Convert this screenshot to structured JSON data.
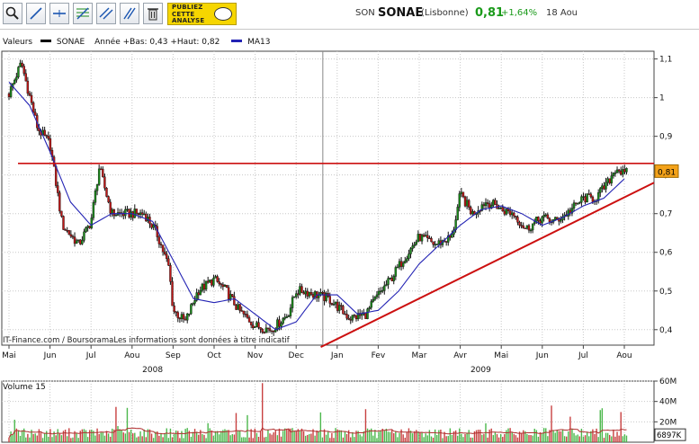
{
  "toolbar": {
    "publicity_text": "PUBLIEZ\nCETTE\nANALYSE",
    "ticker_prefix": "SON",
    "ticker_name": "SONAE",
    "market": "(Lisbonne)",
    "price": "0,81",
    "change": "+1,64%",
    "date": "18 Aou"
  },
  "legend": {
    "label": "Valeurs",
    "series_name": "SONAE",
    "range": "Année +Bas: 0,43 +Haut: 0,82",
    "ma_name": "MA13"
  },
  "credit": "IT-Finance.com / BoursoramaLes informations sont données à titre indicatif",
  "volume_label": "Volume 15",
  "colors": {
    "price": "#000000",
    "up_candle": "#1a8a1a",
    "down_candle": "#c01818",
    "ma13": "#2323b4",
    "trend": "#cc1010",
    "volume_up": "#4cb84c",
    "volume_down": "#c84040",
    "volume_ma": "#b03030",
    "price_tag": "#f3a21a",
    "grid": "#c8c8c8"
  },
  "chart_data": {
    "type": "line",
    "title": "SONAE",
    "y_ticks": [
      "0,4",
      "0,5",
      "0,6",
      "0,7",
      "0,8",
      "0,9",
      "1",
      "1,1"
    ],
    "ylim": [
      0.36,
      1.12
    ],
    "x_ticks": [
      "Mai",
      "Jun",
      "Jul",
      "Aou",
      "Sep",
      "Oct",
      "Nov",
      "Dec",
      "Jan",
      "Fev",
      "Mar",
      "Avr",
      "Mai",
      "Jun",
      "Jul",
      "Aou"
    ],
    "year_labels": [
      "2008",
      "2009"
    ],
    "last_price_label": "0,81",
    "resistance_level": 0.83,
    "series": [
      {
        "name": "SONAE",
        "x": [
          0,
          0.3,
          0.7,
          1.0,
          1.3,
          1.7,
          2.0,
          2.2,
          2.5,
          2.8,
          3.0,
          3.3,
          3.6,
          3.9,
          4.0,
          4.3,
          4.6,
          5.0,
          5.3,
          5.6,
          6.0,
          6.4,
          6.8,
          7.0,
          7.2,
          7.5,
          7.8,
          8.0,
          8.3,
          8.7,
          9.0,
          9.3,
          9.6,
          10.0,
          10.4,
          10.8,
          11.0,
          11.3,
          11.6,
          11.9,
          12.0,
          12.3,
          12.6,
          13.0,
          13.3,
          13.6,
          14.0,
          14.3,
          14.6,
          14.8,
          15.0,
          15.1
        ],
        "values": [
          1.01,
          1.09,
          0.92,
          0.88,
          0.67,
          0.62,
          0.68,
          0.82,
          0.7,
          0.7,
          0.7,
          0.7,
          0.65,
          0.56,
          0.45,
          0.42,
          0.5,
          0.53,
          0.5,
          0.45,
          0.41,
          0.4,
          0.44,
          0.5,
          0.5,
          0.49,
          0.48,
          0.46,
          0.43,
          0.44,
          0.49,
          0.53,
          0.58,
          0.64,
          0.62,
          0.64,
          0.75,
          0.7,
          0.73,
          0.72,
          0.71,
          0.7,
          0.66,
          0.69,
          0.68,
          0.7,
          0.74,
          0.74,
          0.78,
          0.82,
          0.8,
          0.81
        ]
      },
      {
        "name": "MA13",
        "x": [
          0,
          0.5,
          1.0,
          1.5,
          2.0,
          2.5,
          3.0,
          3.5,
          4.0,
          4.5,
          5.0,
          5.5,
          6.0,
          6.5,
          7.0,
          7.5,
          8.0,
          8.5,
          9.0,
          9.5,
          10.0,
          10.5,
          11.0,
          11.5,
          12.0,
          12.5,
          13.0,
          13.5,
          14.0,
          14.5,
          15.0
        ],
        "values": [
          1.04,
          0.98,
          0.86,
          0.73,
          0.67,
          0.7,
          0.7,
          0.68,
          0.58,
          0.48,
          0.47,
          0.48,
          0.44,
          0.4,
          0.42,
          0.49,
          0.49,
          0.44,
          0.45,
          0.5,
          0.57,
          0.62,
          0.67,
          0.71,
          0.72,
          0.7,
          0.67,
          0.69,
          0.72,
          0.74,
          0.79
        ]
      }
    ],
    "volume": {
      "y_ticks": [
        "20M",
        "40M",
        "60M"
      ],
      "ylim": [
        0,
        60
      ],
      "last_volume_label": "6897K",
      "spike": {
        "x": 6.2,
        "value": 58
      }
    }
  }
}
